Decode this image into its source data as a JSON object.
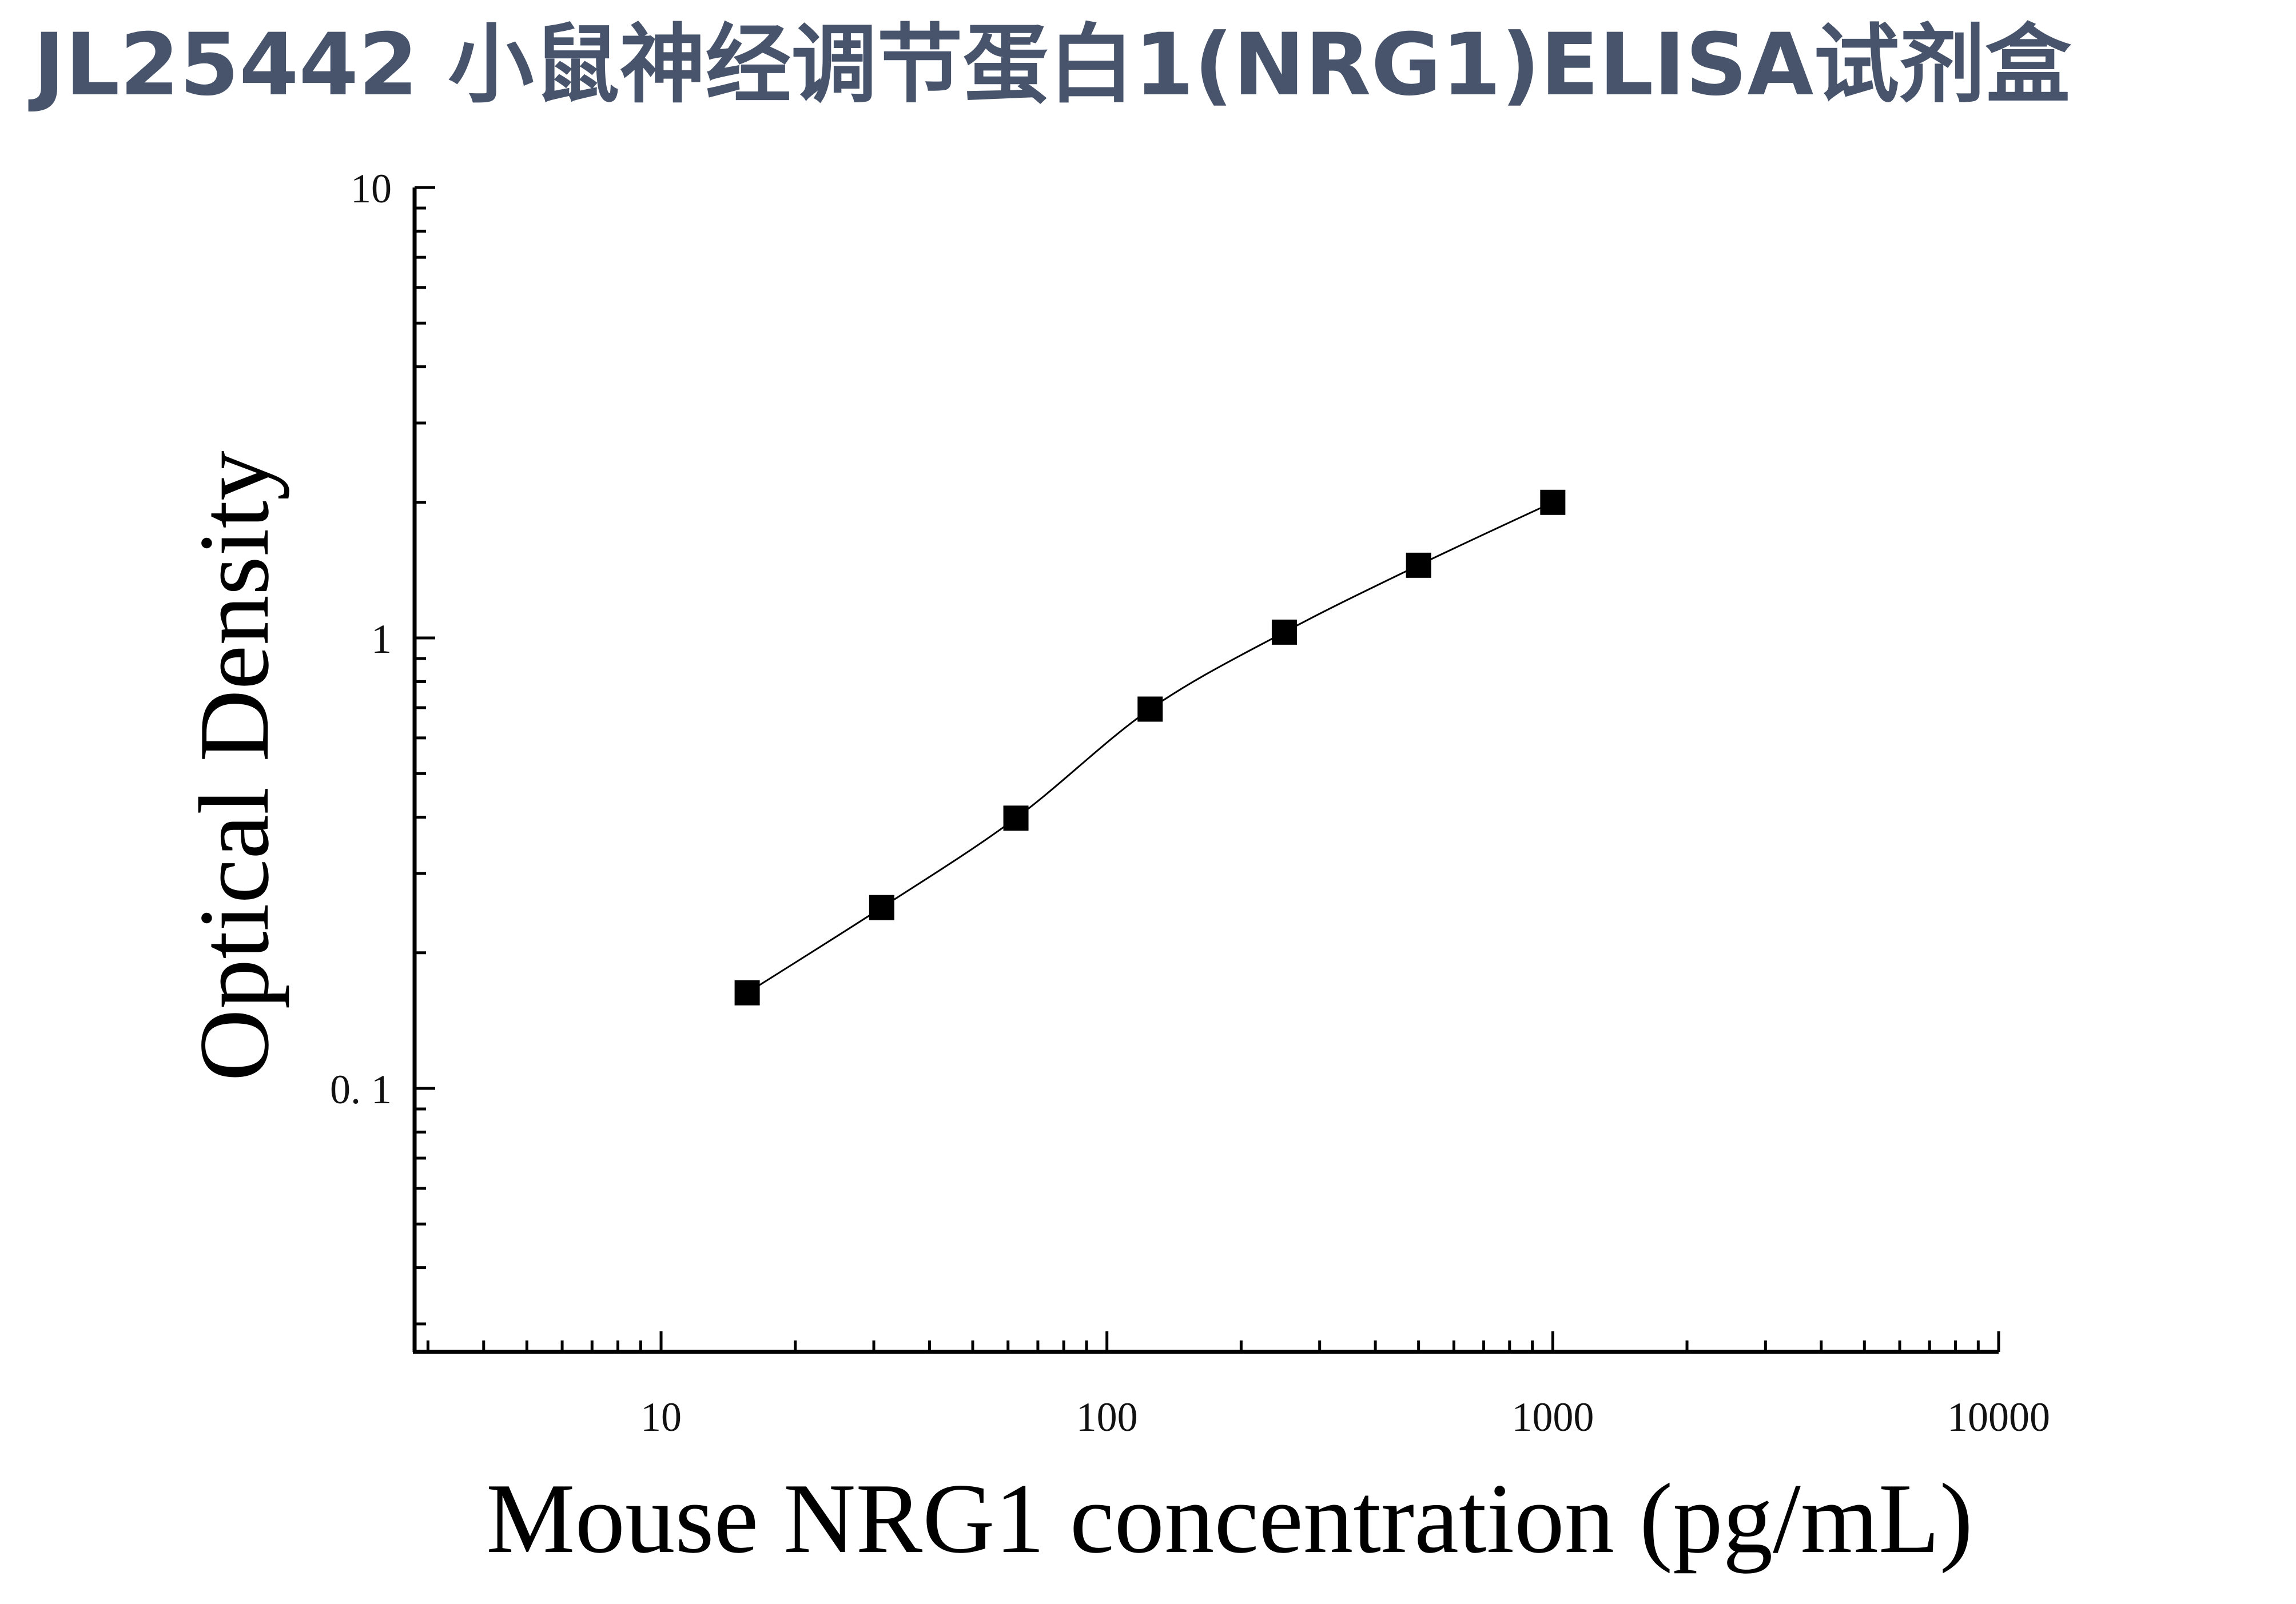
{
  "title": "JL25442 小鼠神经调节蛋白1(NRG1)ELISA试剂盒",
  "chart_data": {
    "type": "scatter",
    "title": "JL25442 小鼠神经调节蛋白1(NRG1)ELISA试剂盒",
    "xlabel": "Mouse NRG1 concentration (pg/mL)",
    "ylabel": "Optical Density",
    "x_scale": "log",
    "y_scale": "log",
    "xlim": [
      2.8,
      10000
    ],
    "ylim": [
      0.026,
      10
    ],
    "x_ticks": [
      10,
      100,
      1000,
      10000
    ],
    "x_tick_labels": [
      "10",
      "100",
      "1000",
      "10000"
    ],
    "y_ticks": [
      0.1,
      1,
      10
    ],
    "y_tick_labels": [
      "0. 1",
      "1",
      "10"
    ],
    "grid": false,
    "legend": "none",
    "marker": "square",
    "fit_curve": true,
    "series": [
      {
        "x": [
          15.6,
          31.25,
          62.5,
          125,
          250,
          500,
          1000
        ],
        "y": [
          0.163,
          0.252,
          0.398,
          0.695,
          1.03,
          1.45,
          2.0
        ]
      }
    ],
    "colors": {
      "title": "#47546b",
      "marks": "#000000"
    }
  }
}
